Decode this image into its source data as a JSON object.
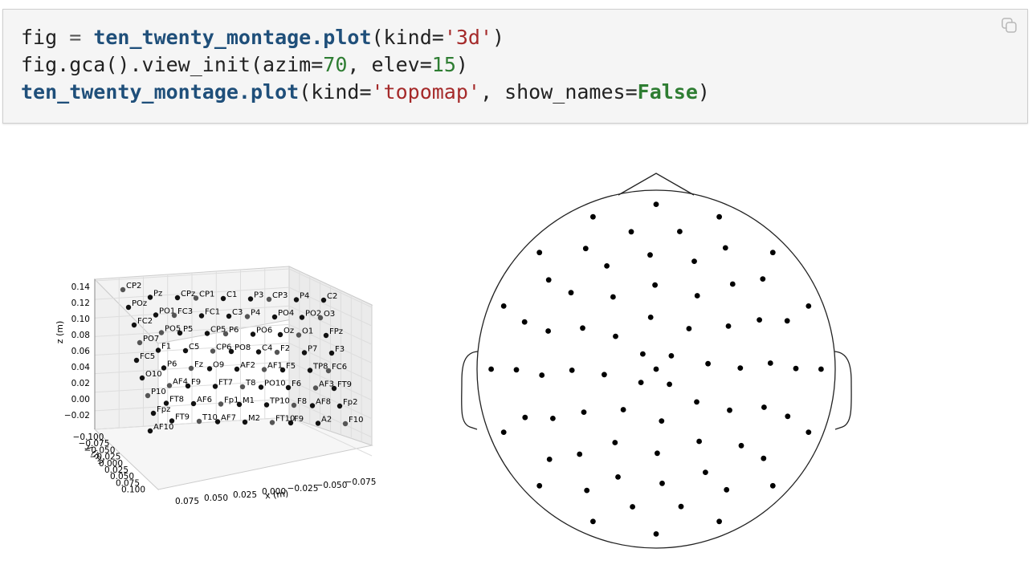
{
  "code": {
    "line1": {
      "var": "fig",
      "eq": " = ",
      "fn": "ten_twenty_montage.plot",
      "open": "(kind=",
      "str": "'3d'",
      "close": ")"
    },
    "line2": {
      "call": "fig.gca().view_init(azim=",
      "n1": "70",
      "mid": ", elev=",
      "n2": "15",
      "close": ")"
    },
    "line3": {
      "fn": "ten_twenty_montage.plot",
      "open": "(kind=",
      "str": "'topomap'",
      "mid": ", show_names=",
      "kw": "False",
      "close": ")"
    },
    "copy_icon": "copy-icon"
  },
  "plot3d": {
    "zlabel": "z (m)",
    "ylabel": "y (m)",
    "xlabel": "x (m)",
    "zticks": [
      "0.14",
      "0.12",
      "0.10",
      "0.08",
      "0.06",
      "0.04",
      "0.02",
      "0.00",
      "−0.02"
    ],
    "yticks": [
      "−0.100",
      "−0.075",
      "−0.050",
      "−0.025",
      "0.000",
      "0.025",
      "0.050",
      "0.075",
      "0.100"
    ],
    "xticks": [
      "0.075",
      "0.050",
      "0.025",
      "0.000",
      "−0.025",
      "−0.050",
      "−0.075"
    ],
    "channel_labels": [
      "CP2",
      "Pz",
      "CPz",
      "CP1",
      "C1",
      "P3",
      "CP3",
      "P4",
      "C2",
      "POz",
      "PO1",
      "FC3",
      "FC1",
      "C3",
      "P4",
      "PO4",
      "PO2",
      "O3",
      "FC2",
      "PO5",
      "P5",
      "CP5",
      "P6",
      "PO6",
      "Oz",
      "O1",
      "FPz",
      "PO7",
      "F1",
      "C5",
      "CP6",
      "PO8",
      "C4",
      "F2",
      "P7",
      "F3",
      "FC5",
      "P6",
      "Fz",
      "O9",
      "AF2",
      "AF1",
      "F5",
      "TP8",
      "FC6",
      "O10",
      "AF4",
      "F9",
      "FT7",
      "T8",
      "PO10",
      "F6",
      "AF3",
      "FT9",
      "P10",
      "FT8",
      "AF6",
      "Fp1",
      "M1",
      "TP10",
      "F8",
      "AF8",
      "Fp2",
      "Fpz",
      "FT9",
      "T10",
      "AF7",
      "M2",
      "FT10",
      "F9",
      "A2",
      "F10",
      "AF10"
    ]
  },
  "topomap": {
    "show_names": false
  }
}
